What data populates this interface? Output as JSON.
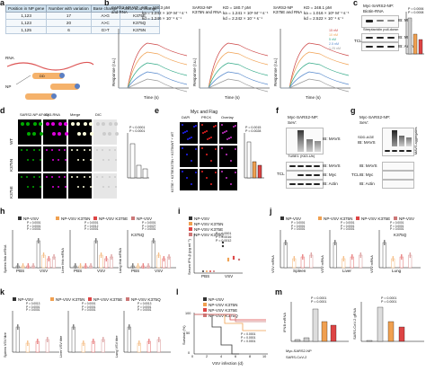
{
  "panel_a": {
    "letter": "a",
    "headers": [
      "Position in NP gene",
      "Number with variation",
      "Base change",
      "Amino acid change"
    ],
    "rows": [
      [
        "1,123",
        "17",
        "A>G",
        "K375E"
      ],
      [
        "1,123",
        "20",
        "A>C",
        "K375Q"
      ],
      [
        "1,125",
        "6",
        "G>T",
        "K375N"
      ]
    ],
    "rna_label": "RNA",
    "np_label": "NP",
    "domain_label": "DD"
  },
  "panel_b": {
    "letter": "b",
    "charts": [
      {
        "title": "SARS2-NP WT and RNA",
        "kd": "KD = 100.3 pM",
        "ka": "ka = 1.242 × 10⁶ M⁻¹ s⁻¹",
        "kdis": "kd = 1.246 × 10⁻⁴ s⁻¹"
      },
      {
        "title": "SARS2-NP K375N and RNA",
        "kd": "KD = 180.7 pM",
        "ka": "ka = 1.241 × 10⁶ M⁻¹ s⁻¹",
        "kdis": "kd = 2.242 × 10⁻⁴ s⁻¹"
      },
      {
        "title": "SARS2-NP K375E and RNA",
        "kd": "KD = 248.1 pM",
        "ka": "ka = 1.016 × 10⁶ M⁻¹ s⁻¹",
        "kdis": "kd = 2.522 × 10⁻⁴ s⁻¹"
      }
    ],
    "ylabel": "Response (r.u.)",
    "xlabel": "Time (s)",
    "legend": [
      "15 nM",
      "10 nM",
      "5 nM",
      "2.5 nM",
      "1.25 nM"
    ]
  },
  "panel_c": {
    "letter": "c",
    "lanes_header": "Myc-SARS2-NP:",
    "lanes": [
      "WT",
      "K375N",
      "K375E"
    ],
    "row1": "Biotin-RNA",
    "blot1": "IB: Myc",
    "pulldown": "Streptavidin pull-down",
    "blot2": "IB: Myc",
    "blot3": "IB: Actin",
    "tcl": "TCL",
    "p1": "P = 0.0006",
    "p2": "P = 0.0008",
    "ylabel": "RNA binding affinity"
  },
  "panel_d": {
    "letter": "d",
    "columns": [
      "SARS2-NP AF488",
      "Cy3-RNA",
      "Merge",
      "DIC"
    ],
    "rows": [
      "WT",
      "K375N",
      "K375E"
    ],
    "p1": "P < 0.0001",
    "p2": "P < 0.0001",
    "ylabel": "Area occupied"
  },
  "panel_e": {
    "letter": "e",
    "title": "Myc and Flag",
    "columns": [
      "DAPI",
      "PRCK",
      "Overlay"
    ],
    "rows": [
      "WT + WT",
      "K375N + K375N",
      "K375E + K375E"
    ],
    "p1": "P = 0.0015",
    "p2": "P = 0.0028",
    "ylabel": "PLA dots per cell",
    "side": "Myc-SARS2-NP + Flag-SARS2-NP"
  },
  "panel_f": {
    "letter": "f",
    "lanes_header": "Myc-SARS2-NP:",
    "sev": "SeV:",
    "lanes": [
      "–",
      "WT",
      "K375N",
      "K375E"
    ],
    "blot1": "IB: MAVS",
    "tube": "TUBE1 (K63-Ub)",
    "blot2": "IB: MAVS",
    "blot3": "IB: Myc",
    "blot4": "IB: Actin",
    "tcl": "TCL",
    "mavs_ub": "MAVS-Ub",
    "size": "Size (kDa)"
  },
  "panel_g": {
    "letter": "g",
    "lanes_header": "Myc-SARS2-NP:",
    "sev": "SeV:",
    "lanes": [
      "–",
      "WT",
      "K375E",
      "K375N"
    ],
    "sdd": "SDD-AGE",
    "blot1": "IB: MAVS",
    "blot2": "IB: MAVS",
    "blot3": "IB: Myc",
    "blot4": "IB: Actin",
    "tcl": "TCL",
    "agg": "MAVS aggregates",
    "mono": "MAVS monomer",
    "size": "Size (kDa)"
  },
  "panel_h": {
    "letter": "h",
    "legend": [
      "NP-VSV",
      "NP-VSV K375N",
      "NP-VSV K375E",
      "NP-VSV K375Q"
    ],
    "groups": [
      "PBS",
      "VSV"
    ],
    "charts": [
      {
        "ylabel": "Spleen Ifnb mRNA",
        "p": [
          "P = 0.0001",
          "P = 0.0001",
          "P = 0.0001"
        ]
      },
      {
        "ylabel": "Liver Ifnb mRNA",
        "p": [
          "P = 0.0001",
          "P = 0.0012",
          "P = 0.0001"
        ]
      },
      {
        "ylabel": "Lung Ifnb mRNA",
        "p": [
          "P = 0.0001",
          "P = 0.0027",
          "P = 0.0001"
        ]
      }
    ]
  },
  "panel_i": {
    "letter": "i",
    "legend": [
      "NP-VSV",
      "NP-VSV K375N",
      "NP-VSV K375E",
      "NP-VSV K375Q"
    ],
    "ylabel": "Serum IFN-β (pg ml⁻¹)",
    "groups": [
      "PBS",
      "VSV"
    ],
    "p": [
      "P < 0.0001",
      "P = 0.0016",
      "P = 0.0012"
    ]
  },
  "panel_j": {
    "letter": "j",
    "legend": [
      "NP-VSV",
      "NP-VSV K375N",
      "NP-VSV K375E",
      "NP-VSV K375Q"
    ],
    "charts": [
      {
        "ylabel": "VSV mRNA",
        "label": "Spleen",
        "p": [
          "P = 0.0001",
          "P = 0.0001",
          "P = 0.0001"
        ]
      },
      {
        "ylabel": "VSV mRNA",
        "label": "Liver",
        "p": [
          "P = 0.0001",
          "P = 0.0001",
          "P = 0.0001"
        ]
      },
      {
        "ylabel": "VSV mRNA",
        "label": "Lung",
        "p": [
          "P = 0.0001",
          "P = 0.0001",
          "P = 0.0001"
        ]
      }
    ]
  },
  "panel_k": {
    "letter": "k",
    "legend": [
      "NP-VSV",
      "NP-VSV K375N",
      "NP-VSV K375E",
      "NP-VSV K375Q"
    ],
    "charts": [
      {
        "ylabel": "Spleen VSV titre",
        "p": [
          "P = 0.0013",
          "P = 0.0001",
          "P = 0.0001"
        ]
      },
      {
        "ylabel": "Liver VSV titre",
        "p": [
          "P = 0.0001",
          "P = 0.0001",
          "P = 0.0001"
        ]
      },
      {
        "ylabel": "Lung VSV titre",
        "p": [
          "P = 0.0013",
          "P = 0.0001",
          "P = 0.0001"
        ]
      }
    ]
  },
  "panel_l": {
    "letter": "l",
    "legend": [
      "NP-VSV",
      "NP-VSV K375N",
      "NP-VSV K375E",
      "NP-VSV K375Q"
    ],
    "ylabel": "Survival (%)",
    "xlabel": "VSV infection (d)",
    "p": [
      "P = 0.0001",
      "P = 0.0001",
      "P = 0.0001"
    ],
    "xticks": [
      "0",
      "2",
      "4",
      "6",
      "8",
      "10"
    ],
    "yticks": [
      "0",
      "50",
      "100"
    ]
  },
  "panel_m": {
    "letter": "m",
    "chart1": {
      "ylabel": "IFNB mRNA",
      "p": [
        "P = 0.0001",
        "P = 0.0001"
      ]
    },
    "chart2": {
      "ylabel": "SARS-CoV-2 gRNA",
      "p": [
        "P = 0.0001",
        "P = 0.0001"
      ]
    },
    "xlabel1": "Myc-SARS2-NP",
    "xlabel2": "SARS-CoV-2",
    "lanes": [
      "–",
      "WT",
      "K375N",
      "K375E"
    ]
  }
}
